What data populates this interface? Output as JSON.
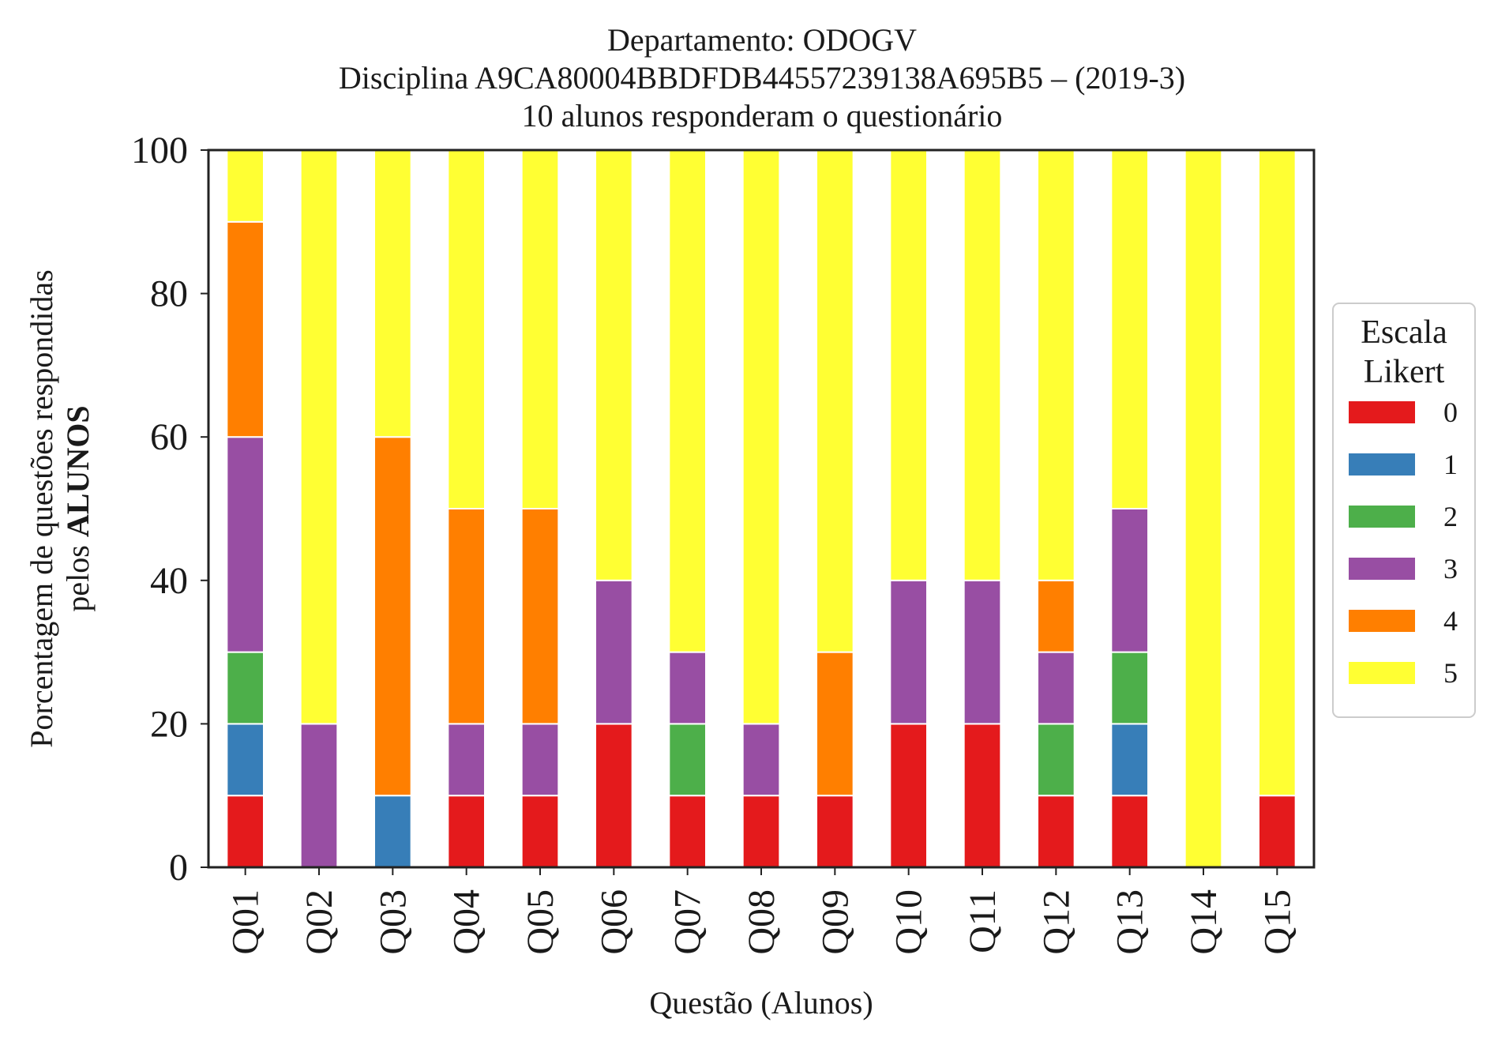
{
  "chart_data": {
    "type": "bar",
    "stacked": true,
    "title_lines": [
      "Departamento: ODOGV",
      "Disciplina A9CA80004BBDFDB44557239138A695B5 – (2019-3)",
      "10 alunos responderam o questionário"
    ],
    "xlabel": "Questão (Alunos)",
    "ylabel_line1": "Porcentagem de questões respondidas",
    "ylabel_line2_prefix": "pelos ",
    "ylabel_line2_bold": "ALUNOS",
    "ylim": [
      0,
      100
    ],
    "yticks": [
      "0",
      "20",
      "40",
      "60",
      "80",
      "100"
    ],
    "grid": false,
    "categories": [
      "Q01",
      "Q02",
      "Q03",
      "Q04",
      "Q05",
      "Q06",
      "Q07",
      "Q08",
      "Q09",
      "Q10",
      "Q11",
      "Q12",
      "Q13",
      "Q14",
      "Q15"
    ],
    "legend": {
      "title_line1": "Escala",
      "title_line2": "Likert",
      "placement": "right"
    },
    "series": [
      {
        "name": "0",
        "color": "#e41a1c",
        "values": [
          10,
          0,
          0,
          10,
          10,
          20,
          10,
          10,
          10,
          20,
          20,
          10,
          10,
          0,
          10
        ]
      },
      {
        "name": "1",
        "color": "#377eb8",
        "values": [
          10,
          0,
          10,
          0,
          0,
          0,
          0,
          0,
          0,
          0,
          0,
          0,
          10,
          0,
          0
        ]
      },
      {
        "name": "2",
        "color": "#4daf4a",
        "values": [
          10,
          0,
          0,
          0,
          0,
          0,
          10,
          0,
          0,
          0,
          0,
          10,
          10,
          0,
          0
        ]
      },
      {
        "name": "3",
        "color": "#984ea3",
        "values": [
          30,
          20,
          0,
          10,
          10,
          20,
          10,
          10,
          0,
          20,
          20,
          10,
          20,
          0,
          0
        ]
      },
      {
        "name": "4",
        "color": "#ff7f00",
        "values": [
          30,
          0,
          50,
          30,
          30,
          0,
          0,
          0,
          20,
          0,
          0,
          10,
          0,
          0,
          0
        ]
      },
      {
        "name": "5",
        "color": "#ffff33",
        "values": [
          10,
          80,
          40,
          50,
          50,
          60,
          70,
          80,
          70,
          60,
          60,
          60,
          50,
          100,
          90
        ]
      }
    ]
  }
}
